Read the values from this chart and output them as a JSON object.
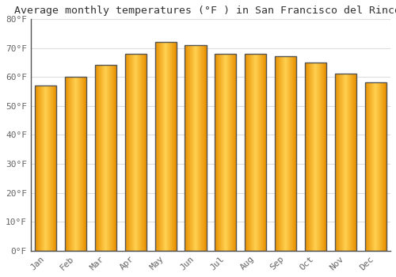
{
  "title": "Average monthly temperatures (°F ) in San Francisco del Rincón",
  "months": [
    "Jan",
    "Feb",
    "Mar",
    "Apr",
    "May",
    "Jun",
    "Jul",
    "Aug",
    "Sep",
    "Oct",
    "Nov",
    "Dec"
  ],
  "values": [
    57,
    60,
    64,
    68,
    72,
    71,
    68,
    68,
    67,
    65,
    61,
    58
  ],
  "bar_color_center": "#FFD050",
  "bar_color_edge_dark": "#E89000",
  "background_color": "#FFFFFF",
  "plot_bg_color": "#FFFFFF",
  "grid_color": "#DDDDDD",
  "ylim": [
    0,
    80
  ],
  "yticks": [
    0,
    10,
    20,
    30,
    40,
    50,
    60,
    70,
    80
  ],
  "ytick_labels": [
    "0°F",
    "10°F",
    "20°F",
    "30°F",
    "40°F",
    "50°F",
    "60°F",
    "70°F",
    "80°F"
  ],
  "title_fontsize": 9.5,
  "tick_fontsize": 8,
  "font_family": "monospace",
  "text_color": "#666666",
  "spine_color": "#555555"
}
